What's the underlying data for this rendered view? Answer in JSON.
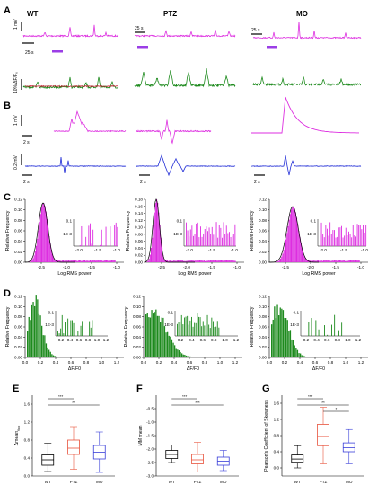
{
  "panel_letters": [
    "A",
    "B",
    "C",
    "D",
    "E",
    "F",
    "G"
  ],
  "conditions": [
    "WT",
    "PTZ",
    "MO"
  ],
  "colors": {
    "magenta": "#dd2ee0",
    "green": "#1d8a1d",
    "blue": "#1f2bd6",
    "red": "#c2182b",
    "box_red": "#e8523b",
    "box_blue": "#3a3fd9",
    "black": "#000000"
  },
  "scalebars": {
    "a_mv": "1 mV",
    "a_ff": "10% ΔF/F₀",
    "a_time": "25 s",
    "b_mv1": "1 mV",
    "b_mv2": "0.2 mV",
    "b_time": "2 s"
  },
  "chart_data": [
    {
      "panel": "C",
      "type": "bar",
      "subplots": [
        "WT",
        "PTZ",
        "MO"
      ],
      "xlabel": "Log RMS power",
      "ylabel": "Relative Frequency",
      "xlim": [
        -2.8,
        -1.0
      ],
      "xticks": [
        "-2.5",
        "-2.0",
        "-1.5",
        "-1.0"
      ],
      "yticks": {
        "WT": [
          "0.00",
          "0.02",
          "0.04",
          "0.06",
          "0.08",
          "0.10",
          "0.12"
        ],
        "PTZ": [
          "0.00",
          "0.02",
          "0.04",
          "0.06",
          "0.08",
          "0.10",
          "0.12",
          "0.14",
          "0.16",
          "0.18"
        ],
        "MO": [
          "0.00",
          "0.02",
          "0.04",
          "0.06",
          "0.08",
          "0.10",
          "0.12"
        ]
      },
      "ylim": {
        "WT": [
          0,
          0.12
        ],
        "PTZ": [
          0,
          0.18
        ],
        "MO": [
          0,
          0.12
        ]
      },
      "peak": {
        "WT": [
          -2.37,
          0.105
        ],
        "PTZ": [
          -2.55,
          0.165
        ],
        "MO": [
          -2.33,
          0.095
        ]
      },
      "inset_yticks": [
        "0.1",
        "1E-3"
      ],
      "inset_xticks": [
        "-2.0",
        "-1.5",
        "-1.0"
      ]
    },
    {
      "panel": "D",
      "type": "bar",
      "subplots": [
        "WT",
        "PTZ",
        "MO"
      ],
      "xlabel": "ΔF/F0",
      "ylabel": "Relative Frequency",
      "xticks": [
        "0.0",
        "0.2",
        "0.4",
        "0.6",
        "0.8",
        "1.0",
        "1.2"
      ],
      "inset_yticks": [
        "0.1",
        "1E-3"
      ],
      "inset_xticks": [
        "0.2",
        "0.4",
        "0.6",
        "0.8",
        "1.0",
        "1.2"
      ],
      "inset_yticks_ptz": [
        "0.1",
        "1E-3"
      ]
    },
    {
      "panel": "E",
      "type": "box",
      "categories": [
        "WT",
        "PTZ",
        "MO"
      ],
      "ylabel": "Δmean",
      "ylabel_sub": "fluo",
      "ylim": [
        0,
        1.8
      ],
      "yticks": [
        "0.0",
        "0.4",
        "0.8",
        "1.2",
        "1.6"
      ],
      "boxes": [
        {
          "name": "WT",
          "min": 0.1,
          "q1": 0.24,
          "median": 0.36,
          "q3": 0.47,
          "max": 0.73
        },
        {
          "name": "PTZ",
          "min": 0.15,
          "q1": 0.48,
          "median": 0.62,
          "q3": 0.8,
          "max": 1.1
        },
        {
          "name": "MO",
          "min": 0.08,
          "q1": 0.38,
          "median": 0.53,
          "q3": 0.68,
          "max": 0.98
        }
      ],
      "significance": [
        {
          "pair": [
            "WT",
            "PTZ"
          ],
          "label": "***"
        },
        {
          "pair": [
            "WT",
            "MO"
          ],
          "label": "**"
        }
      ]
    },
    {
      "panel": "F",
      "type": "box",
      "categories": [
        "WT",
        "PTZ",
        "MO"
      ],
      "ylabel": "MM mean",
      "ylim": [
        -3.0,
        0.0
      ],
      "yticks": [
        "-0.5",
        "-1.0",
        "-1.5",
        "-2.0",
        "-2.5",
        "-3.0"
      ],
      "boxes": [
        {
          "name": "WT",
          "min": -2.5,
          "q1": -2.35,
          "median": -2.2,
          "q3": -2.05,
          "max": -1.85
        },
        {
          "name": "PTZ",
          "min": -2.85,
          "q1": -2.55,
          "median": -2.4,
          "q3": -2.2,
          "max": -1.75
        },
        {
          "name": "MO",
          "min": -2.8,
          "q1": -2.6,
          "median": -2.45,
          "q3": -2.3,
          "max": -2.05
        }
      ],
      "significance": [
        {
          "pair": [
            "WT",
            "PTZ"
          ],
          "label": "***"
        },
        {
          "pair": [
            "WT",
            "MO"
          ],
          "label": "***"
        }
      ]
    },
    {
      "panel": "G",
      "type": "box",
      "categories": [
        "WT",
        "PTZ",
        "MO"
      ],
      "ylabel": "Pearson's Coefficient of Skewness",
      "ylim": [
        -0.2,
        1.8
      ],
      "yticks": [
        "0.0",
        "0.4",
        "0.8",
        "1.2",
        "1.6"
      ],
      "boxes": [
        {
          "name": "WT",
          "min": 0.0,
          "q1": 0.14,
          "median": 0.22,
          "q3": 0.32,
          "max": 0.55
        },
        {
          "name": "PTZ",
          "min": 0.1,
          "q1": 0.55,
          "median": 0.78,
          "q3": 1.08,
          "max": 1.5
        },
        {
          "name": "MO",
          "min": 0.1,
          "q1": 0.4,
          "median": 0.5,
          "q3": 0.62,
          "max": 0.95
        }
      ],
      "significance": [
        {
          "pair": [
            "WT",
            "PTZ"
          ],
          "label": "***"
        },
        {
          "pair": [
            "WT",
            "MO"
          ],
          "label": "**"
        },
        {
          "pair": [
            "PTZ",
            "MO"
          ],
          "label": "*"
        }
      ]
    }
  ]
}
